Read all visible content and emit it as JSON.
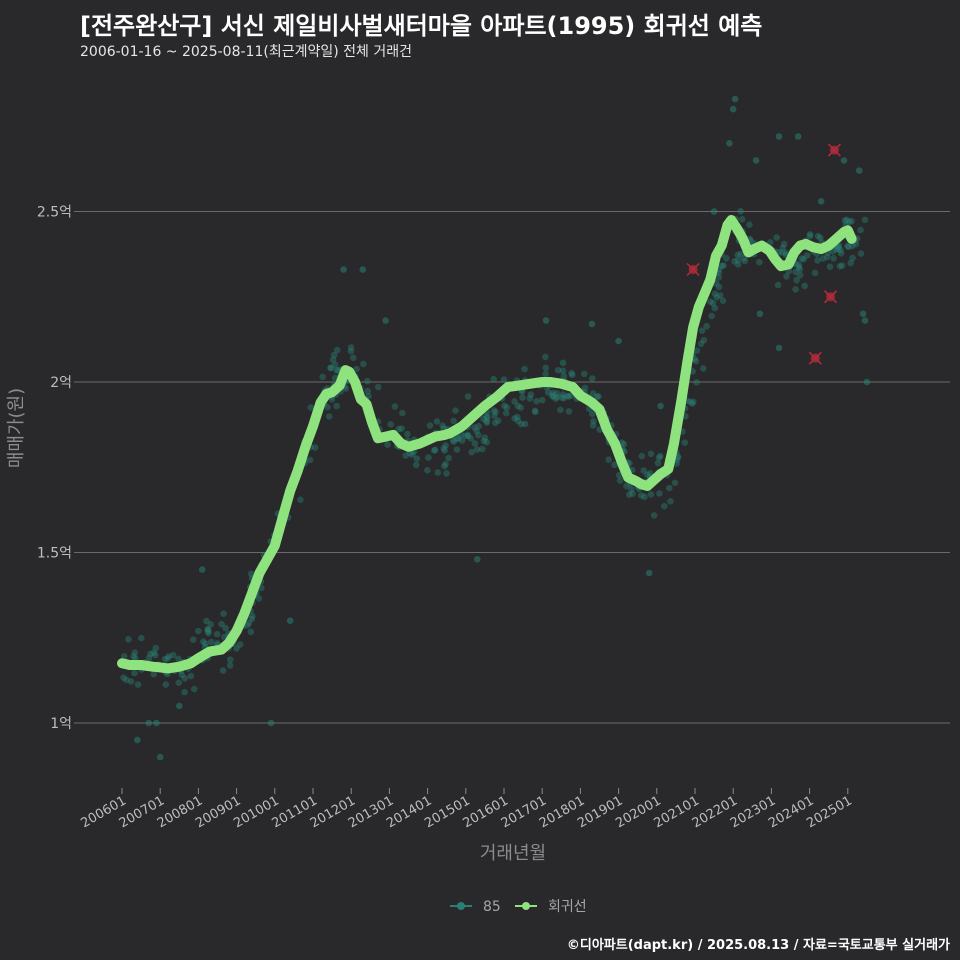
{
  "title": "[전주완산구] 서신 제일비사벌새터마을 아파트(1995) 회귀선 예측",
  "subtitle": "2006-01-16 ~ 2025-08-11(최근계약일) 전체 거래건",
  "caption": "©디아파트(dapt.kr) / 2025.08.13 / 자료=국토교통부 실거래가",
  "colors": {
    "background": "#29282b",
    "grid": "#6b6b6b",
    "points": "#2a7f74",
    "regression": "#8fe37e",
    "outlier": "#b22a3a"
  },
  "chart_data": {
    "type": "scatter",
    "title": "[전주완산구] 서신 제일비사벌새터마을 아파트(1995) 회귀선 예측",
    "xlabel": "거래년월",
    "ylabel": "매매가(원)",
    "x_domain": [
      2006.0,
      2025.62
    ],
    "ylim": [
      0.8,
      2.85
    ],
    "y_ticks": [
      {
        "value": 1.0,
        "label": "1억"
      },
      {
        "value": 1.5,
        "label": "1.5억"
      },
      {
        "value": 2.0,
        "label": "2억"
      },
      {
        "value": 2.5,
        "label": "2.5억"
      }
    ],
    "x_ticks": [
      {
        "value": 2006.0,
        "label": "200601"
      },
      {
        "value": 2007.0,
        "label": "200701"
      },
      {
        "value": 2008.0,
        "label": "200801"
      },
      {
        "value": 2009.0,
        "label": "200901"
      },
      {
        "value": 2010.0,
        "label": "201001"
      },
      {
        "value": 2011.0,
        "label": "201101"
      },
      {
        "value": 2012.0,
        "label": "201201"
      },
      {
        "value": 2013.0,
        "label": "201301"
      },
      {
        "value": 2014.0,
        "label": "201401"
      },
      {
        "value": 2015.0,
        "label": "201501"
      },
      {
        "value": 2016.0,
        "label": "201601"
      },
      {
        "value": 2017.0,
        "label": "201701"
      },
      {
        "value": 2018.0,
        "label": "201801"
      },
      {
        "value": 2019.0,
        "label": "201901"
      },
      {
        "value": 2020.0,
        "label": "202001"
      },
      {
        "value": 2021.0,
        "label": "202101"
      },
      {
        "value": 2022.0,
        "label": "202201"
      },
      {
        "value": 2023.0,
        "label": "202301"
      },
      {
        "value": 2024.0,
        "label": "202401"
      },
      {
        "value": 2025.0,
        "label": "202501"
      }
    ],
    "legend": [
      {
        "name": "85",
        "style": "points"
      },
      {
        "name": "회귀선",
        "style": "line"
      }
    ],
    "legend_position": "bottom",
    "series": [
      {
        "name": "85",
        "type": "scatter",
        "anchors": [
          [
            2006.0,
            1.17
          ],
          [
            2006.5,
            1.2
          ],
          [
            2007.0,
            1.18
          ],
          [
            2007.5,
            1.15
          ],
          [
            2008.0,
            1.2
          ],
          [
            2008.5,
            1.25
          ],
          [
            2009.0,
            1.22
          ],
          [
            2009.5,
            1.4
          ],
          [
            2010.0,
            1.5
          ],
          [
            2010.5,
            1.7
          ],
          [
            2011.0,
            1.85
          ],
          [
            2011.5,
            2.0
          ],
          [
            2012.0,
            2.05
          ],
          [
            2012.5,
            1.95
          ],
          [
            2013.0,
            1.85
          ],
          [
            2013.5,
            1.82
          ],
          [
            2014.0,
            1.8
          ],
          [
            2014.5,
            1.82
          ],
          [
            2015.0,
            1.85
          ],
          [
            2015.5,
            1.88
          ],
          [
            2016.0,
            1.95
          ],
          [
            2016.5,
            1.98
          ],
          [
            2017.0,
            1.98
          ],
          [
            2017.5,
            1.98
          ],
          [
            2018.0,
            1.97
          ],
          [
            2018.5,
            1.9
          ],
          [
            2019.0,
            1.8
          ],
          [
            2019.5,
            1.7
          ],
          [
            2020.0,
            1.7
          ],
          [
            2020.5,
            1.75
          ],
          [
            2021.0,
            2.05
          ],
          [
            2021.5,
            2.25
          ],
          [
            2022.0,
            2.4
          ],
          [
            2022.5,
            2.42
          ],
          [
            2023.0,
            2.38
          ],
          [
            2023.5,
            2.35
          ],
          [
            2024.0,
            2.38
          ],
          [
            2024.5,
            2.38
          ],
          [
            2025.0,
            2.4
          ],
          [
            2025.5,
            2.42
          ]
        ],
        "spread": 0.12,
        "count": 560,
        "highlights": [
          [
            2008.1,
            1.45
          ],
          [
            2009.9,
            1.0
          ],
          [
            2010.4,
            1.3
          ],
          [
            2011.8,
            2.33
          ],
          [
            2012.3,
            2.33
          ],
          [
            2012.9,
            2.18
          ],
          [
            2015.3,
            1.48
          ],
          [
            2017.1,
            2.18
          ],
          [
            2018.3,
            2.17
          ],
          [
            2019.0,
            2.12
          ],
          [
            2019.8,
            1.44
          ],
          [
            2020.1,
            1.93
          ],
          [
            2021.5,
            2.5
          ],
          [
            2021.9,
            2.7
          ],
          [
            2022.0,
            2.8
          ],
          [
            2022.05,
            2.83
          ],
          [
            2022.6,
            2.65
          ],
          [
            2023.2,
            2.72
          ],
          [
            2023.7,
            2.72
          ],
          [
            2024.3,
            2.53
          ],
          [
            2024.9,
            2.65
          ],
          [
            2025.3,
            2.62
          ],
          [
            2025.4,
            2.2
          ],
          [
            2025.45,
            2.18
          ],
          [
            2025.5,
            2.0
          ],
          [
            2007.0,
            0.9
          ],
          [
            2006.9,
            1.0
          ],
          [
            2006.7,
            1.0
          ],
          [
            2006.4,
            0.95
          ],
          [
            2007.5,
            1.05
          ],
          [
            2023.2,
            2.1
          ],
          [
            2022.7,
            2.2
          ],
          [
            2024.7,
            2.4
          ]
        ]
      },
      {
        "name": "회귀선",
        "type": "line",
        "points": [
          [
            2006.0,
            1.175
          ],
          [
            2006.2,
            1.17
          ],
          [
            2006.5,
            1.17
          ],
          [
            2006.8,
            1.165
          ],
          [
            2007.0,
            1.163
          ],
          [
            2007.2,
            1.16
          ],
          [
            2007.5,
            1.165
          ],
          [
            2007.8,
            1.175
          ],
          [
            2008.0,
            1.19
          ],
          [
            2008.3,
            1.21
          ],
          [
            2008.6,
            1.215
          ],
          [
            2008.8,
            1.235
          ],
          [
            2009.0,
            1.27
          ],
          [
            2009.2,
            1.32
          ],
          [
            2009.4,
            1.38
          ],
          [
            2009.6,
            1.44
          ],
          [
            2009.8,
            1.48
          ],
          [
            2010.0,
            1.52
          ],
          [
            2010.2,
            1.6
          ],
          [
            2010.4,
            1.68
          ],
          [
            2010.6,
            1.74
          ],
          [
            2010.8,
            1.81
          ],
          [
            2011.0,
            1.87
          ],
          [
            2011.2,
            1.94
          ],
          [
            2011.35,
            1.965
          ],
          [
            2011.5,
            1.97
          ],
          [
            2011.7,
            1.99
          ],
          [
            2011.85,
            2.035
          ],
          [
            2011.95,
            2.03
          ],
          [
            2012.1,
            2.0
          ],
          [
            2012.25,
            1.95
          ],
          [
            2012.4,
            1.935
          ],
          [
            2012.55,
            1.88
          ],
          [
            2012.7,
            1.835
          ],
          [
            2012.9,
            1.84
          ],
          [
            2013.1,
            1.845
          ],
          [
            2013.3,
            1.82
          ],
          [
            2013.5,
            1.81
          ],
          [
            2013.8,
            1.82
          ],
          [
            2014.0,
            1.83
          ],
          [
            2014.2,
            1.84
          ],
          [
            2014.45,
            1.845
          ],
          [
            2014.6,
            1.85
          ],
          [
            2014.9,
            1.87
          ],
          [
            2015.2,
            1.9
          ],
          [
            2015.5,
            1.93
          ],
          [
            2015.8,
            1.955
          ],
          [
            2016.1,
            1.985
          ],
          [
            2016.4,
            1.99
          ],
          [
            2016.7,
            1.995
          ],
          [
            2017.0,
            2.0
          ],
          [
            2017.2,
            2.0
          ],
          [
            2017.5,
            1.995
          ],
          [
            2017.8,
            1.985
          ],
          [
            2018.0,
            1.96
          ],
          [
            2018.3,
            1.94
          ],
          [
            2018.5,
            1.92
          ],
          [
            2018.7,
            1.86
          ],
          [
            2018.9,
            1.82
          ],
          [
            2019.1,
            1.76
          ],
          [
            2019.25,
            1.72
          ],
          [
            2019.45,
            1.71
          ],
          [
            2019.6,
            1.7
          ],
          [
            2019.75,
            1.695
          ],
          [
            2019.95,
            1.715
          ],
          [
            2020.1,
            1.73
          ],
          [
            2020.3,
            1.745
          ],
          [
            2020.45,
            1.82
          ],
          [
            2020.65,
            1.95
          ],
          [
            2020.8,
            2.06
          ],
          [
            2020.95,
            2.16
          ],
          [
            2021.1,
            2.22
          ],
          [
            2021.25,
            2.26
          ],
          [
            2021.4,
            2.3
          ],
          [
            2021.55,
            2.37
          ],
          [
            2021.7,
            2.4
          ],
          [
            2021.85,
            2.46
          ],
          [
            2021.95,
            2.475
          ],
          [
            2022.1,
            2.45
          ],
          [
            2022.25,
            2.42
          ],
          [
            2022.4,
            2.38
          ],
          [
            2022.55,
            2.39
          ],
          [
            2022.75,
            2.4
          ],
          [
            2022.95,
            2.385
          ],
          [
            2023.1,
            2.36
          ],
          [
            2023.25,
            2.34
          ],
          [
            2023.45,
            2.345
          ],
          [
            2023.6,
            2.38
          ],
          [
            2023.75,
            2.4
          ],
          [
            2023.9,
            2.405
          ],
          [
            2024.1,
            2.395
          ],
          [
            2024.3,
            2.39
          ],
          [
            2024.5,
            2.4
          ],
          [
            2024.7,
            2.42
          ],
          [
            2024.9,
            2.44
          ],
          [
            2025.0,
            2.445
          ],
          [
            2025.1,
            2.42
          ]
        ]
      },
      {
        "name": "outliers",
        "type": "scatter",
        "points": [
          [
            2020.95,
            2.33
          ],
          [
            2024.65,
            2.68
          ],
          [
            2024.55,
            2.25
          ],
          [
            2024.15,
            2.07
          ]
        ]
      }
    ]
  }
}
